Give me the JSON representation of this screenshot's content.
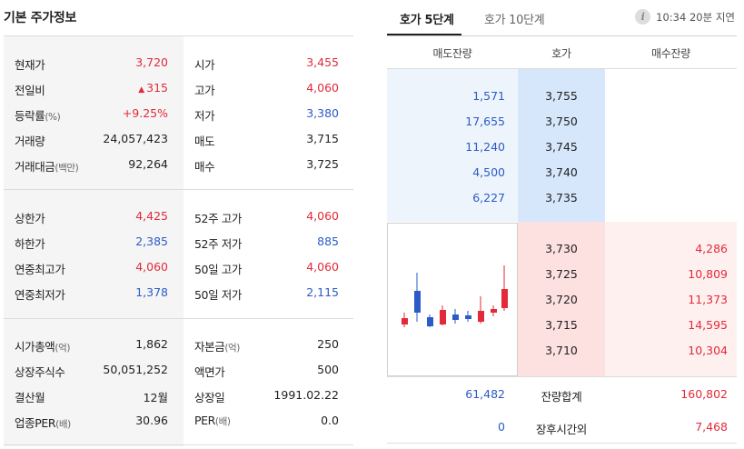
{
  "left": {
    "title": "기본 주가정보",
    "sections": [
      {
        "rows": [
          {
            "k1": "현재가",
            "u1": "",
            "v1": "3,720",
            "c1": "red",
            "arrow": "",
            "k2": "시가",
            "u2": "",
            "v2": "3,455",
            "c2": "red"
          },
          {
            "k1": "전일비",
            "u1": "",
            "v1": "315",
            "c1": "red",
            "arrow": "▲",
            "k2": "고가",
            "u2": "",
            "v2": "4,060",
            "c2": "red"
          },
          {
            "k1": "등락률",
            "u1": "(%)",
            "v1": "+9.25%",
            "c1": "red",
            "arrow": "",
            "k2": "저가",
            "u2": "",
            "v2": "3,380",
            "c2": "blue"
          },
          {
            "k1": "거래량",
            "u1": "",
            "v1": "24,057,423",
            "c1": "dark",
            "arrow": "",
            "k2": "매도",
            "u2": "",
            "v2": "3,715",
            "c2": "dark"
          },
          {
            "k1": "거래대금",
            "u1": "(백만)",
            "v1": "92,264",
            "c1": "dark",
            "arrow": "",
            "k2": "매수",
            "u2": "",
            "v2": "3,725",
            "c2": "dark"
          }
        ]
      },
      {
        "rows": [
          {
            "k1": "상한가",
            "u1": "",
            "v1": "4,425",
            "c1": "red",
            "arrow": "",
            "k2": "52주 고가",
            "u2": "",
            "v2": "4,060",
            "c2": "red"
          },
          {
            "k1": "하한가",
            "u1": "",
            "v1": "2,385",
            "c1": "blue",
            "arrow": "",
            "k2": "52주 저가",
            "u2": "",
            "v2": "885",
            "c2": "blue"
          },
          {
            "k1": "연중최고가",
            "u1": "",
            "v1": "4,060",
            "c1": "red",
            "arrow": "",
            "k2": "50일 고가",
            "u2": "",
            "v2": "4,060",
            "c2": "red"
          },
          {
            "k1": "연중최저가",
            "u1": "",
            "v1": "1,378",
            "c1": "blue",
            "arrow": "",
            "k2": "50일 저가",
            "u2": "",
            "v2": "2,115",
            "c2": "blue"
          }
        ]
      },
      {
        "rows": [
          {
            "k1": "시가총액",
            "u1": "(억)",
            "v1": "1,862",
            "c1": "dark",
            "arrow": "",
            "k2": "자본금",
            "u2": "(억)",
            "v2": "250",
            "c2": "dark"
          },
          {
            "k1": "상장주식수",
            "u1": "",
            "v1": "50,051,252",
            "c1": "dark",
            "arrow": "",
            "k2": "액면가",
            "u2": "",
            "v2": "500",
            "c2": "dark"
          },
          {
            "k1": "결산월",
            "u1": "",
            "v1": "12월",
            "c1": "dark",
            "arrow": "",
            "k2": "상장일",
            "u2": "",
            "v2": "1991.02.22",
            "c2": "dark"
          },
          {
            "k1": "업종PER",
            "u1": "(배)",
            "v1": "30.96",
            "c1": "dark",
            "arrow": "",
            "k2": "PER",
            "u2": "(배)",
            "v2": "0.0",
            "c2": "dark"
          }
        ]
      }
    ]
  },
  "right": {
    "tabs": [
      "호가 5단계",
      "호가 10단계"
    ],
    "info_icon": "info-icon",
    "info_glyph": "i",
    "delay_text": "10:34 20분 지연",
    "headers": {
      "sell": "매도잔량",
      "price": "호가",
      "buy": "매수잔량"
    },
    "asks": [
      {
        "volume": "1,571",
        "price": "3,755"
      },
      {
        "volume": "17,655",
        "price": "3,750"
      },
      {
        "volume": "11,240",
        "price": "3,745"
      },
      {
        "volume": "4,500",
        "price": "3,740"
      },
      {
        "volume": "6,227",
        "price": "3,735"
      }
    ],
    "bids": [
      {
        "price": "3,730",
        "volume": "4,286"
      },
      {
        "price": "3,725",
        "volume": "10,809"
      },
      {
        "price": "3,720",
        "volume": "11,373"
      },
      {
        "price": "3,715",
        "volume": "14,595"
      },
      {
        "price": "3,710",
        "volume": "10,304"
      }
    ],
    "totals": {
      "sell": "61,482",
      "label": "잔량합계",
      "buy": "160,802"
    },
    "after_hours": {
      "sell": "0",
      "label": "장후시간외",
      "buy": "7,468"
    },
    "colors": {
      "up": "#e22a3a",
      "down": "#2b5bc6"
    }
  }
}
